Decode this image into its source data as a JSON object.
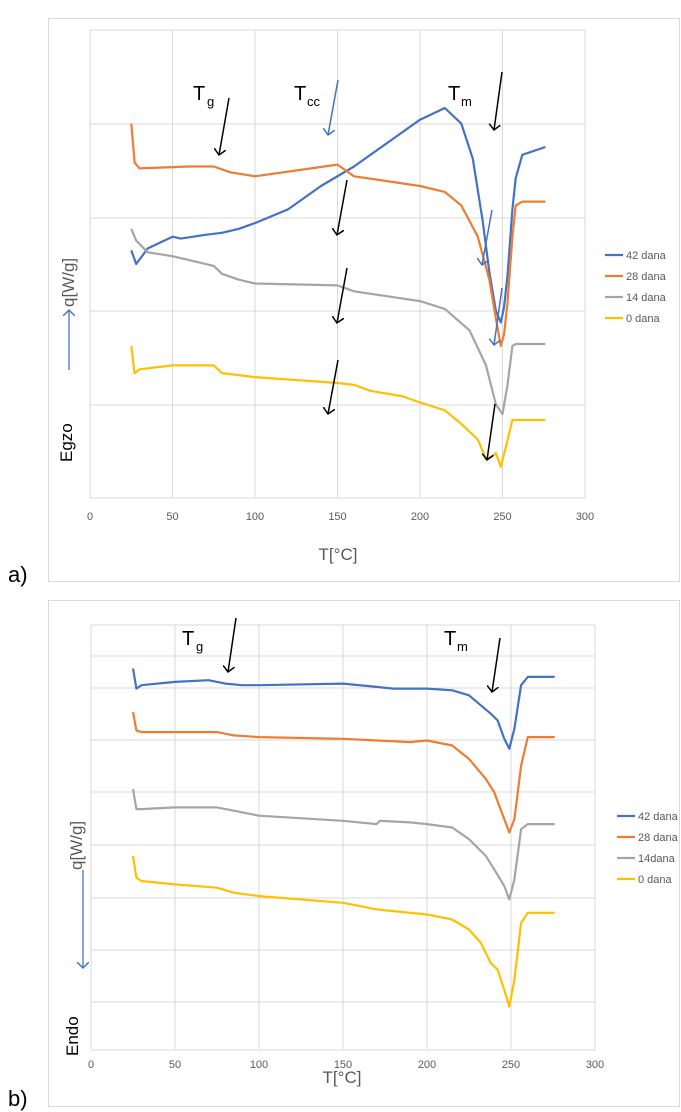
{
  "panels": [
    {
      "letter": "a)",
      "side_label": "Egzo",
      "arrow_direction": "up",
      "ylabel": "q[W/g]",
      "xlabel": "T[°C]",
      "annotations": [
        {
          "base": "T",
          "sub": "g"
        },
        {
          "base": "T",
          "sub": "cc"
        },
        {
          "base": "T",
          "sub": "m"
        }
      ],
      "legend": [
        "42 dana",
        "28 dana",
        "14 dana",
        "0 dana"
      ]
    },
    {
      "letter": "b)",
      "side_label": "Endo",
      "arrow_direction": "down",
      "ylabel": "q[W/g]",
      "xlabel": "T[°C]",
      "annotations": [
        {
          "base": "T",
          "sub": "g"
        },
        {
          "base": "T",
          "sub": "m"
        }
      ],
      "legend": [
        "42 dana",
        "28 dana",
        "14dana",
        "0 dana"
      ]
    }
  ],
  "colors": {
    "42 dana": "#4472c4",
    "28 dana": "#ed7d31",
    "14 dana": "#a5a5a5",
    "0 dana": "#ffc000",
    "arrow_black": "#000000",
    "arrow_blue": "#4472c4",
    "grid": "#d9d9d9"
  },
  "chart_data": [
    {
      "type": "line",
      "xlabel": "T[°C]",
      "ylabel": "q[W/g]",
      "xlim": [
        0,
        300
      ],
      "xticks": [
        0,
        50,
        100,
        150,
        200,
        250,
        300
      ],
      "y_tick_labels_shown": false,
      "grid": true,
      "legend_position": "right",
      "series": [
        {
          "name": "42 dana",
          "x": [
            25,
            28,
            35,
            50,
            55,
            70,
            80,
            90,
            100,
            120,
            140,
            160,
            180,
            200,
            215,
            225,
            232,
            238,
            242,
            246,
            249,
            251,
            253,
            256,
            258,
            262,
            276
          ],
          "y": [
            -0.15,
            -0.5,
            -0.1,
            0.2,
            0.15,
            0.25,
            0.3,
            0.4,
            0.55,
            0.9,
            1.5,
            2.0,
            2.6,
            3.2,
            3.5,
            3.1,
            2.2,
            0.6,
            -0.7,
            -1.7,
            -2.0,
            -1.6,
            -0.8,
            0.9,
            1.7,
            2.3,
            2.5
          ]
        },
        {
          "name": "28 dana",
          "x": [
            25,
            27,
            30,
            60,
            75,
            85,
            100,
            150,
            160,
            200,
            215,
            225,
            235,
            242,
            246,
            249,
            251,
            253,
            256,
            258,
            262,
            276
          ],
          "y": [
            3.1,
            2.1,
            1.95,
            2.0,
            2.0,
            1.85,
            1.75,
            2.05,
            1.75,
            1.5,
            1.35,
            1.0,
            0.2,
            -0.9,
            -1.9,
            -2.6,
            -2.3,
            -1.5,
            0.2,
            1.0,
            1.1,
            1.1
          ]
        },
        {
          "name": "14 dana",
          "x": [
            25,
            28,
            35,
            50,
            75,
            80,
            90,
            100,
            150,
            160,
            200,
            215,
            230,
            240,
            246,
            250,
            253,
            256,
            258,
            276
          ],
          "y": [
            0.4,
            0.1,
            -0.2,
            -0.3,
            -0.55,
            -0.75,
            -0.9,
            -1.0,
            -1.05,
            -1.2,
            -1.45,
            -1.65,
            -2.2,
            -3.1,
            -4.1,
            -4.35,
            -3.6,
            -2.6,
            -2.55,
            -2.55
          ]
        },
        {
          "name": "0 dana",
          "x": [
            25,
            27,
            30,
            50,
            75,
            80,
            90,
            100,
            150,
            160,
            170,
            190,
            200,
            215,
            225,
            235,
            240,
            243,
            246,
            249,
            252,
            256,
            260,
            276
          ],
          "y": [
            -2.6,
            -3.3,
            -3.2,
            -3.1,
            -3.1,
            -3.3,
            -3.35,
            -3.4,
            -3.55,
            -3.6,
            -3.75,
            -3.9,
            -4.05,
            -4.25,
            -4.6,
            -5.0,
            -5.5,
            -5.45,
            -5.35,
            -5.7,
            -5.2,
            -4.5,
            -4.5,
            -4.5
          ]
        }
      ]
    },
    {
      "type": "line",
      "xlabel": "T[°C]",
      "ylabel": "q[W/g]",
      "xlim": [
        0,
        300
      ],
      "xticks": [
        0,
        50,
        100,
        150,
        200,
        250,
        300
      ],
      "y_tick_labels_shown": false,
      "grid": true,
      "legend_position": "right",
      "series": [
        {
          "name": "42 dana",
          "x": [
            25,
            27,
            30,
            50,
            70,
            80,
            90,
            100,
            150,
            170,
            180,
            190,
            200,
            215,
            225,
            232,
            238,
            242,
            246,
            249,
            252,
            256,
            260,
            276
          ],
          "y": [
            2.2,
            1.6,
            1.7,
            1.8,
            1.85,
            1.75,
            1.7,
            1.7,
            1.75,
            1.65,
            1.6,
            1.6,
            1.6,
            1.55,
            1.4,
            1.1,
            0.85,
            0.65,
            0.1,
            -0.2,
            0.4,
            1.7,
            1.95,
            1.95
          ]
        },
        {
          "name": "28 dana",
          "x": [
            25,
            27,
            30,
            50,
            75,
            85,
            100,
            150,
            190,
            200,
            215,
            225,
            235,
            240,
            246,
            249,
            252,
            256,
            260,
            276
          ],
          "y": [
            0.9,
            0.35,
            0.3,
            0.3,
            0.3,
            0.2,
            0.15,
            0.1,
            0.0,
            0.05,
            -0.1,
            -0.5,
            -1.1,
            -1.5,
            -2.3,
            -2.7,
            -2.3,
            -0.7,
            0.15,
            0.15
          ]
        },
        {
          "name": "14 dana",
          "x": [
            25,
            27,
            30,
            50,
            75,
            85,
            100,
            150,
            170,
            172,
            190,
            200,
            215,
            225,
            235,
            240,
            246,
            249,
            252,
            256,
            260,
            276
          ],
          "y": [
            -1.4,
            -2.0,
            -2.0,
            -1.95,
            -1.95,
            -2.05,
            -2.2,
            -2.35,
            -2.45,
            -2.35,
            -2.4,
            -2.45,
            -2.55,
            -2.9,
            -3.4,
            -3.8,
            -4.3,
            -4.7,
            -4.1,
            -2.6,
            -2.45,
            -2.45
          ]
        },
        {
          "name": "0 dana",
          "x": [
            25,
            27,
            30,
            50,
            75,
            85,
            100,
            150,
            160,
            170,
            180,
            190,
            200,
            215,
            225,
            232,
            238,
            242,
            246,
            249,
            252,
            256,
            260,
            276
          ],
          "y": [
            -3.4,
            -4.05,
            -4.15,
            -4.25,
            -4.35,
            -4.5,
            -4.6,
            -4.8,
            -4.9,
            -5.0,
            -5.05,
            -5.1,
            -5.15,
            -5.3,
            -5.6,
            -6.0,
            -6.6,
            -6.8,
            -7.4,
            -7.9,
            -7.1,
            -5.4,
            -5.1,
            -5.1
          ]
        }
      ]
    }
  ]
}
